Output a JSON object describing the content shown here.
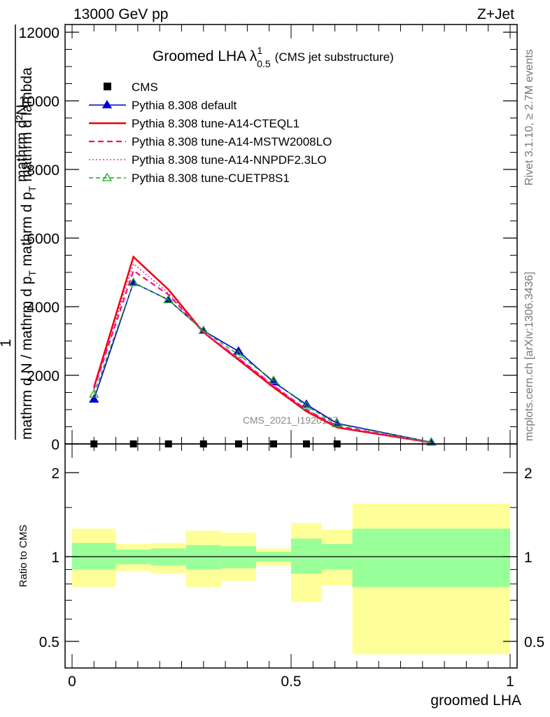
{
  "header": {
    "energy": "13000 GeV pp",
    "process": "Z+Jet"
  },
  "side_labels": {
    "rivet": "Rivet 3.1.10, ≥ 2.7M events",
    "site": "mcplots.cern.ch [arXiv:1306.3436]"
  },
  "chart_data": [
    {
      "panel": "main",
      "type": "line",
      "title_main": "Groomed LHA λ",
      "title_sup": "1",
      "title_sub": "0.5",
      "title_note": "(CMS jet substructure)",
      "ylabel_numerator": "1 mathrm d²N",
      "ylabel_denominator": "mathrm d N / mathrm d p_T mathrm d p_T mathrm d lambda",
      "ylabel_one": "1",
      "ylabel_dsq": "mathrm d²N",
      "ylabel_denom_a": "mathrm d N / mathrm d p",
      "ylabel_denom_t1": "T",
      "ylabel_denom_b": " mathrm d p",
      "ylabel_denom_t2": "T",
      "ylabel_denom_c": " mathrm d lambda",
      "watermark": "CMS_2021_I1920187",
      "xlim": [
        0,
        1
      ],
      "ylim": [
        0,
        12000
      ],
      "yticks": [
        0,
        2000,
        4000,
        6000,
        8000,
        10000,
        12000
      ],
      "ytick_labels": [
        "0",
        "2000",
        "4000",
        "6000",
        "8000",
        "10000",
        "12000"
      ],
      "legend_position": "top-left",
      "series": [
        {
          "name": "CMS",
          "style": "data-square",
          "color": "#000000",
          "x": [
            0.05,
            0.14,
            0.22,
            0.3,
            0.38,
            0.46,
            0.535,
            0.605
          ],
          "y": [
            0,
            0,
            0,
            0,
            0,
            0,
            0,
            0
          ]
        },
        {
          "name": "Pythia 8.308 default",
          "style": "solid-triangle",
          "color": "#0000cc",
          "x": [
            0.05,
            0.14,
            0.22,
            0.3,
            0.38,
            0.46,
            0.535,
            0.605,
            0.82
          ],
          "y": [
            1300,
            4700,
            4200,
            3300,
            2700,
            1800,
            1150,
            600,
            50
          ]
        },
        {
          "name": "Pythia 8.308 tune-A14-CTEQL1",
          "style": "solid-thick",
          "color": "#ee0000",
          "x": [
            0.05,
            0.14,
            0.22,
            0.3,
            0.38,
            0.46,
            0.535,
            0.605,
            0.82
          ],
          "y": [
            1650,
            5450,
            4500,
            3250,
            2450,
            1650,
            950,
            480,
            40
          ]
        },
        {
          "name": "Pythia 8.308 tune-A14-MSTW2008LO",
          "style": "dashed",
          "color": "#ee1177",
          "x": [
            0.05,
            0.14,
            0.22,
            0.3,
            0.38,
            0.46,
            0.535,
            0.605,
            0.82
          ],
          "y": [
            1600,
            5050,
            4350,
            3250,
            2500,
            1700,
            1000,
            520,
            40
          ]
        },
        {
          "name": "Pythia 8.308 tune-A14-NNPDF2.3LO",
          "style": "dotted",
          "color": "#ee22cc",
          "x": [
            0.05,
            0.14,
            0.22,
            0.3,
            0.38,
            0.46,
            0.535,
            0.605,
            0.82
          ],
          "y": [
            1600,
            5250,
            4400,
            3250,
            2500,
            1700,
            1000,
            500,
            40
          ]
        },
        {
          "name": "Pythia 8.308 tune-CUETP8S1",
          "style": "dashed-open-triangle",
          "color": "#22aa22",
          "x": [
            0.05,
            0.14,
            0.22,
            0.3,
            0.38,
            0.46,
            0.535,
            0.605,
            0.82
          ],
          "y": [
            1450,
            4700,
            4200,
            3300,
            2600,
            1850,
            1100,
            580,
            45
          ]
        }
      ]
    },
    {
      "panel": "ratio",
      "type": "band",
      "ylabel": "Ratio to CMS",
      "xlabel": "groomed LHA",
      "xlim": [
        0,
        1
      ],
      "ylim": [
        0.35,
        2.25
      ],
      "yticks": [
        0.5,
        1,
        2
      ],
      "ytick_labels": [
        "0.5",
        "1",
        "2"
      ],
      "xticks": [
        0,
        0.5,
        1
      ],
      "xtick_labels": [
        "0",
        "0.5",
        "1"
      ],
      "bins": [
        {
          "lo": 0.0,
          "hi": 0.1,
          "inner": [
            0.9,
            1.12
          ],
          "outer": [
            0.78,
            1.26
          ]
        },
        {
          "lo": 0.1,
          "hi": 0.18,
          "inner": [
            0.94,
            1.06
          ],
          "outer": [
            0.89,
            1.11
          ]
        },
        {
          "lo": 0.18,
          "hi": 0.26,
          "inner": [
            0.93,
            1.07
          ],
          "outer": [
            0.87,
            1.12
          ]
        },
        {
          "lo": 0.26,
          "hi": 0.34,
          "inner": [
            0.9,
            1.1
          ],
          "outer": [
            0.78,
            1.24
          ]
        },
        {
          "lo": 0.34,
          "hi": 0.42,
          "inner": [
            0.91,
            1.09
          ],
          "outer": [
            0.82,
            1.22
          ]
        },
        {
          "lo": 0.42,
          "hi": 0.5,
          "inner": [
            0.96,
            1.04
          ],
          "outer": [
            0.93,
            1.07
          ]
        },
        {
          "lo": 0.5,
          "hi": 0.57,
          "inner": [
            0.87,
            1.16
          ],
          "outer": [
            0.69,
            1.32
          ]
        },
        {
          "lo": 0.57,
          "hi": 0.64,
          "inner": [
            0.9,
            1.11
          ],
          "outer": [
            0.79,
            1.25
          ]
        },
        {
          "lo": 0.64,
          "hi": 1.0,
          "inner": [
            0.78,
            1.26
          ],
          "outer": [
            0.45,
            1.55
          ]
        }
      ]
    }
  ],
  "colors": {
    "band_inner": "#99ff99",
    "band_outer": "#ffff99"
  }
}
